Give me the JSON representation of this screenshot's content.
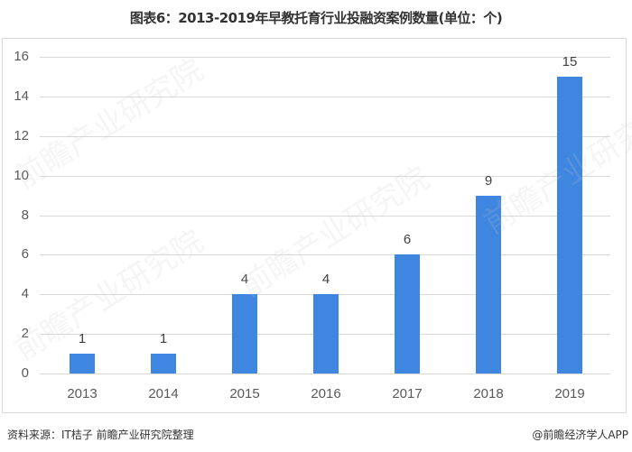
{
  "title": "图表6：2013-2019年早教托育行业投融资案例数量(单位：个)",
  "footer": {
    "source": "资料来源：IT桔子 前瞻产业研究院整理",
    "credit": "@前瞻经济学人APP"
  },
  "watermark": "前瞻产业研究院",
  "colors": {
    "bar": "#3f86e0",
    "grid": "#d9d9d9",
    "text": "#595959"
  },
  "chart_data": {
    "type": "bar",
    "title": "图表6：2013-2019年早教托育行业投融资案例数量(单位：个)",
    "xlabel": "",
    "ylabel": "",
    "categories": [
      "2013",
      "2014",
      "2015",
      "2016",
      "2017",
      "2018",
      "2019"
    ],
    "values": [
      1,
      1,
      4,
      4,
      6,
      9,
      15
    ],
    "ylim": [
      0,
      16
    ],
    "yticks": [
      "0",
      "2",
      "4",
      "6",
      "8",
      "10",
      "12",
      "14",
      "16"
    ],
    "grid": true,
    "legend": "none",
    "data_labels": [
      "1",
      "1",
      "4",
      "4",
      "6",
      "9",
      "15"
    ]
  }
}
